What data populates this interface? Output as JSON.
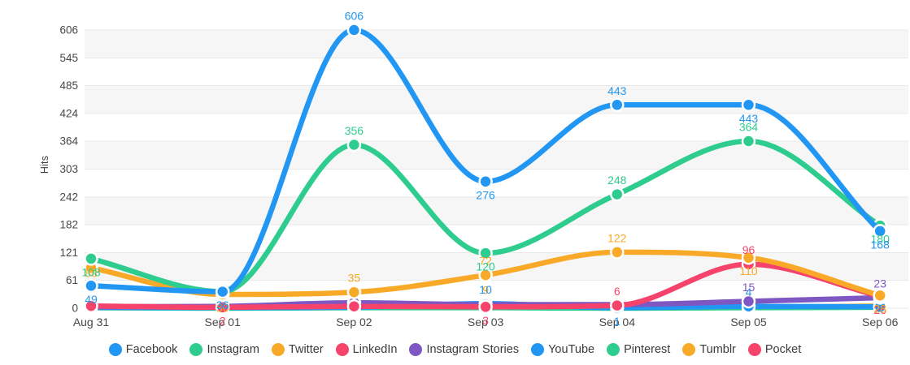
{
  "chart_data": {
    "type": "line",
    "title": "",
    "ylabel": "Hits",
    "categories": [
      "Aug 31",
      "Sep 01",
      "Sep 02",
      "Sep 03",
      "Sep 04",
      "Sep 05",
      "Sep 06"
    ],
    "yticks": [
      606,
      545,
      485,
      424,
      364,
      303,
      242,
      182,
      121,
      61,
      0
    ],
    "ylim": [
      0,
      606
    ],
    "grid": "horizontal gridlines with alternating light-gray bands",
    "legend_position": "bottom",
    "line_style": "smooth monotone curves with circular point markers and value labels colored per series",
    "series": [
      {
        "name": "Facebook",
        "color": "#2196f3",
        "values": [
          49,
          36,
          606,
          276,
          443,
          443,
          168
        ],
        "labels": [
          {
            "i": 0,
            "text": "49",
            "pos": "below"
          },
          {
            "i": 1,
            "text": "36",
            "pos": "below"
          },
          {
            "i": 2,
            "text": "606",
            "pos": "above"
          },
          {
            "i": 3,
            "text": "276",
            "pos": "below"
          },
          {
            "i": 4,
            "text": "443",
            "pos": "above"
          },
          {
            "i": 5,
            "text": "443",
            "pos": "below"
          },
          {
            "i": 6,
            "text": "168",
            "pos": "below"
          }
        ]
      },
      {
        "name": "Instagram",
        "color": "#2ecc8e",
        "values": [
          108,
          36,
          356,
          120,
          248,
          364,
          180
        ],
        "labels": [
          {
            "i": 0,
            "text": "108",
            "pos": "below"
          },
          {
            "i": 1,
            "text": "36",
            "pos": "below"
          },
          {
            "i": 2,
            "text": "356",
            "pos": "above"
          },
          {
            "i": 3,
            "text": "120",
            "pos": "below"
          },
          {
            "i": 4,
            "text": "248",
            "pos": "above"
          },
          {
            "i": 5,
            "text": "364",
            "pos": "above"
          },
          {
            "i": 6,
            "text": "180",
            "pos": "below"
          }
        ]
      },
      {
        "name": "Twitter",
        "color": "#f9a928",
        "values": [
          88,
          30,
          35,
          72,
          122,
          110,
          28
        ],
        "labels": [
          {
            "i": 0,
            "text": "88",
            "pos": "below",
            "dy": 7
          },
          {
            "i": 1,
            "text": "30",
            "pos": "below"
          },
          {
            "i": 2,
            "text": "35",
            "pos": "above"
          },
          {
            "i": 3,
            "text": "72",
            "pos": "above"
          },
          {
            "i": 4,
            "text": "122",
            "pos": "above"
          },
          {
            "i": 5,
            "text": "110",
            "pos": "below"
          },
          {
            "i": 6,
            "text": "28",
            "pos": "below"
          }
        ]
      },
      {
        "name": "LinkedIn",
        "color": "#f5436c",
        "values": [
          5,
          2,
          4,
          3,
          6,
          96,
          26
        ],
        "labels": [
          {
            "i": 1,
            "text": "2",
            "pos": "below"
          },
          {
            "i": 3,
            "text": "3",
            "pos": "below"
          },
          {
            "i": 4,
            "text": "6",
            "pos": "above"
          },
          {
            "i": 5,
            "text": "96",
            "pos": "above"
          },
          {
            "i": 6,
            "text": "26",
            "pos": "below"
          }
        ]
      },
      {
        "name": "Instagram Stories",
        "color": "#7e57c2",
        "values": [
          3,
          4,
          12,
          8,
          8,
          15,
          23
        ],
        "labels": [
          {
            "i": 5,
            "text": "15",
            "pos": "above"
          },
          {
            "i": 6,
            "text": "23",
            "pos": "above"
          }
        ]
      },
      {
        "name": "YouTube",
        "color": "#2196f3",
        "values": [
          2,
          1,
          2,
          10,
          1,
          4,
          3
        ],
        "labels": [
          {
            "i": 3,
            "text": "10",
            "pos": "above"
          },
          {
            "i": 4,
            "text": "1",
            "pos": "below"
          },
          {
            "i": 5,
            "text": "4",
            "pos": "above"
          }
        ]
      },
      {
        "name": "Pinterest",
        "color": "#2ecc8e",
        "values": [
          1,
          0,
          1,
          1,
          0,
          1,
          2
        ],
        "labels": []
      },
      {
        "name": "Tumblr",
        "color": "#f9a928",
        "values": [
          3,
          2,
          5,
          9,
          2,
          2,
          5
        ],
        "labels": [
          {
            "i": 3,
            "text": "9",
            "pos": "above"
          }
        ]
      },
      {
        "name": "Pocket",
        "color": "#f5436c",
        "values": [
          4,
          3,
          3,
          2,
          1,
          2,
          3
        ],
        "labels": []
      }
    ],
    "style_colors": {
      "band": "#f6f6f6",
      "gridline": "#e8e8e8",
      "tick_text": "#474747",
      "legend_text": "#3b3b3b"
    }
  }
}
